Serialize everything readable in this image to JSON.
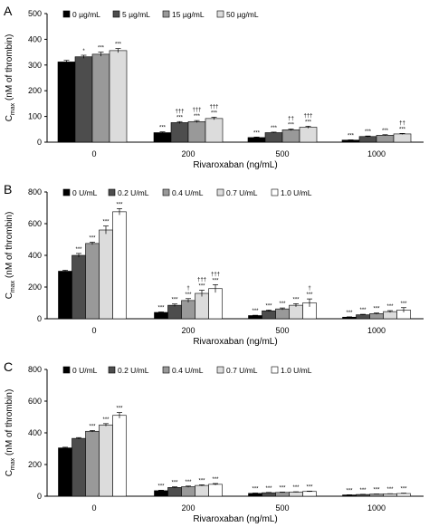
{
  "chart_data": [
    {
      "type": "bar",
      "panel_label": "A",
      "ylabel": "C",
      "ylabel_sub": "max",
      "ylabel_rest": " (nM of thrombin)",
      "xlabel": "Rivaroxaban (ng/mL)",
      "categories": [
        "0",
        "200",
        "500",
        "1000"
      ],
      "ylim": [
        0,
        500
      ],
      "yticks": [
        0,
        100,
        200,
        300,
        400,
        500
      ],
      "legend_position": "top-left",
      "series": [
        {
          "name": "0 µg/mL",
          "color": "#000000",
          "values": [
            312,
            37,
            18,
            8
          ],
          "errors": [
            6,
            3,
            2,
            1
          ],
          "labels": [
            "",
            "***",
            "***",
            "***"
          ]
        },
        {
          "name": "5 µg/mL",
          "color": "#4d4d4d",
          "values": [
            332,
            76,
            37,
            22
          ],
          "errors": [
            6,
            4,
            2,
            2
          ],
          "labels": [
            "*",
            "†††\n***",
            "***",
            "***"
          ]
        },
        {
          "name": "15 µg/mL",
          "color": "#999999",
          "values": [
            342,
            80,
            48,
            27
          ],
          "errors": [
            8,
            4,
            3,
            2
          ],
          "labels": [
            "***",
            "†††\n***",
            "††\n***",
            "***"
          ]
        },
        {
          "name": "50 µg/mL",
          "color": "#dcdcdc",
          "values": [
            356,
            92,
            58,
            32
          ],
          "errors": [
            8,
            5,
            4,
            2
          ],
          "labels": [
            "***",
            "†††\n***",
            "†††\n***",
            "††\n***"
          ]
        }
      ]
    },
    {
      "type": "bar",
      "panel_label": "B",
      "ylabel": "C",
      "ylabel_sub": "max",
      "ylabel_rest": " (nM of thrombin)",
      "xlabel": "Rivaroxaban (ng/mL)",
      "categories": [
        "0",
        "200",
        "500",
        "1000"
      ],
      "ylim": [
        0,
        800
      ],
      "yticks": [
        0,
        200,
        400,
        600,
        800
      ],
      "legend_position": "top-left",
      "series": [
        {
          "name": "0 U/mL",
          "color": "#000000",
          "values": [
            300,
            40,
            20,
            10
          ],
          "errors": [
            6,
            3,
            2,
            2
          ],
          "labels": [
            "",
            "***",
            "***",
            "***"
          ]
        },
        {
          "name": "0.2 U/mL",
          "color": "#4d4d4d",
          "values": [
            400,
            85,
            50,
            25
          ],
          "errors": [
            12,
            8,
            5,
            3
          ],
          "labels": [
            "***",
            "***",
            "***",
            "***"
          ]
        },
        {
          "name": "0.4 U/mL",
          "color": "#999999",
          "values": [
            475,
            115,
            62,
            32
          ],
          "errors": [
            8,
            12,
            6,
            4
          ],
          "labels": [
            "***",
            "†\n***",
            "***",
            "***"
          ]
        },
        {
          "name": "0.7 U/mL",
          "color": "#dcdcdc",
          "values": [
            560,
            160,
            85,
            45
          ],
          "errors": [
            25,
            20,
            10,
            6
          ],
          "labels": [
            "***",
            "†††\n***",
            "***",
            "***"
          ]
        },
        {
          "name": "1.0 U/mL",
          "color": "#ffffff",
          "values": [
            675,
            190,
            100,
            55
          ],
          "errors": [
            20,
            25,
            25,
            15
          ],
          "labels": [
            "***",
            "†††\n***",
            "†\n***",
            "***"
          ]
        }
      ]
    },
    {
      "type": "bar",
      "panel_label": "C",
      "ylabel": "C",
      "ylabel_sub": "max",
      "ylabel_rest": " (nM of thrombin)",
      "xlabel": "Rivaroxaban (ng/mL)",
      "categories": [
        "0",
        "200",
        "500",
        "1000"
      ],
      "ylim": [
        0,
        800
      ],
      "yticks": [
        0,
        200,
        400,
        600,
        800
      ],
      "legend_position": "top-left",
      "series": [
        {
          "name": "0 U/mL",
          "color": "#000000",
          "values": [
            305,
            35,
            18,
            8
          ],
          "errors": [
            4,
            3,
            2,
            1
          ],
          "labels": [
            "",
            "***",
            "***",
            "***"
          ]
        },
        {
          "name": "0.2 U/mL",
          "color": "#4d4d4d",
          "values": [
            365,
            55,
            22,
            11
          ],
          "errors": [
            5,
            4,
            2,
            1
          ],
          "labels": [
            "",
            "***",
            "***",
            "***"
          ]
        },
        {
          "name": "0.4 U/mL",
          "color": "#999999",
          "values": [
            410,
            60,
            24,
            13
          ],
          "errors": [
            5,
            4,
            2,
            1
          ],
          "labels": [
            "***",
            "***",
            "***",
            "***"
          ]
        },
        {
          "name": "0.7 U/mL",
          "color": "#dcdcdc",
          "values": [
            450,
            68,
            26,
            15
          ],
          "errors": [
            8,
            4,
            2,
            1
          ],
          "labels": [
            "***",
            "***",
            "***",
            "***"
          ]
        },
        {
          "name": "1.0 U/mL",
          "color": "#ffffff",
          "values": [
            510,
            75,
            30,
            17
          ],
          "errors": [
            18,
            5,
            2,
            2
          ],
          "labels": [
            "***",
            "***",
            "***",
            "***"
          ]
        }
      ]
    }
  ]
}
